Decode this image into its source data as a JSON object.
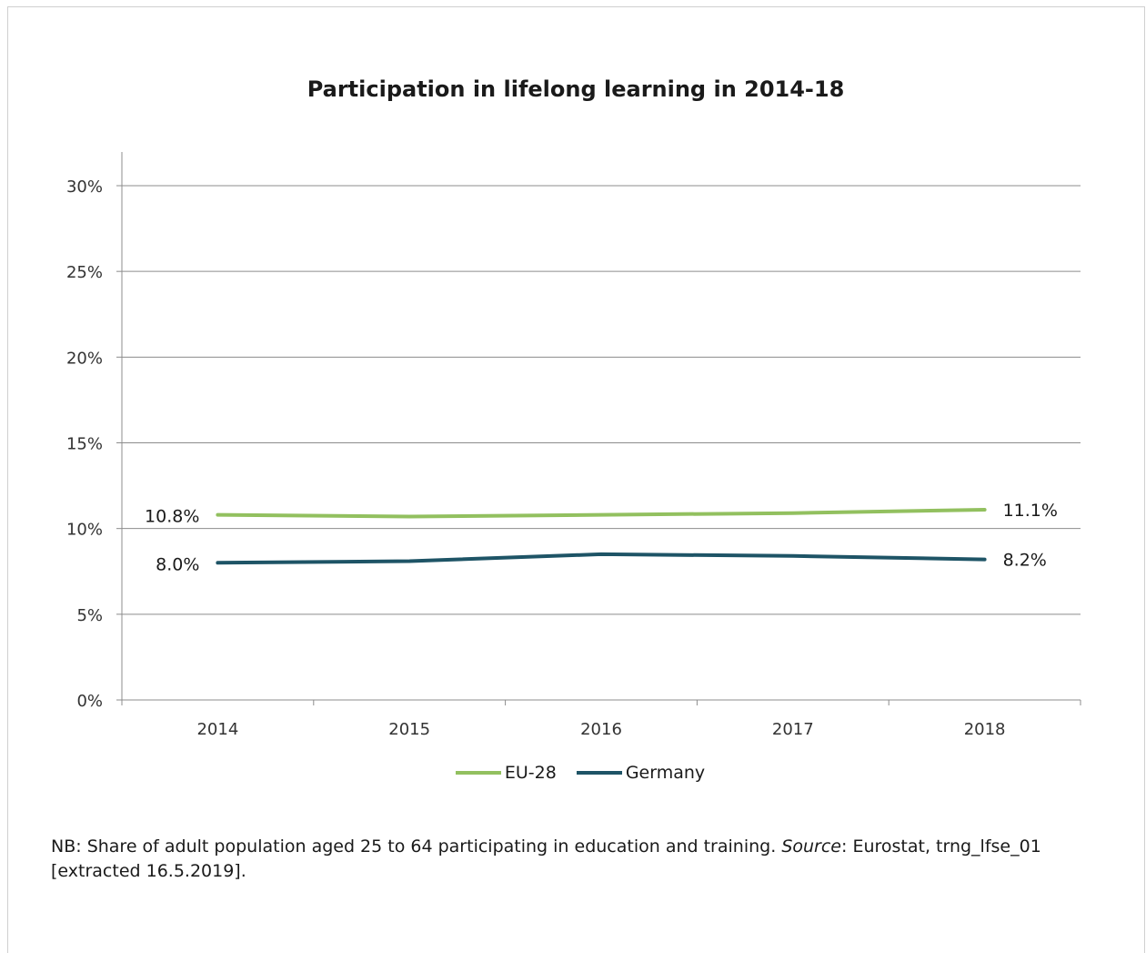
{
  "chart_data": {
    "type": "line",
    "title": "Participation in lifelong learning in 2014-18",
    "categories": [
      "2014",
      "2015",
      "2016",
      "2017",
      "2018"
    ],
    "y_ticks": [
      "0%",
      "5%",
      "10%",
      "15%",
      "20%",
      "25%",
      "30%"
    ],
    "ylim": [
      0,
      30
    ],
    "grid": true,
    "legend_position": "bottom",
    "series": [
      {
        "name": "EU-28",
        "color": "#92c05f",
        "values": [
          10.8,
          10.7,
          10.8,
          10.9,
          11.1
        ],
        "first_label": "10.8%",
        "last_label": "11.1%"
      },
      {
        "name": "Germany",
        "color": "#1e5466",
        "values": [
          8.0,
          8.1,
          8.5,
          8.4,
          8.2
        ],
        "first_label": "8.0%",
        "last_label": "8.2%"
      }
    ]
  },
  "note": {
    "prefix": "NB: Share of adult population aged 25 to 64 participating in education and training. ",
    "source_word": "Source",
    "suffix": ": Eurostat, trng_lfse_01 [extracted 16.5.2019]."
  }
}
